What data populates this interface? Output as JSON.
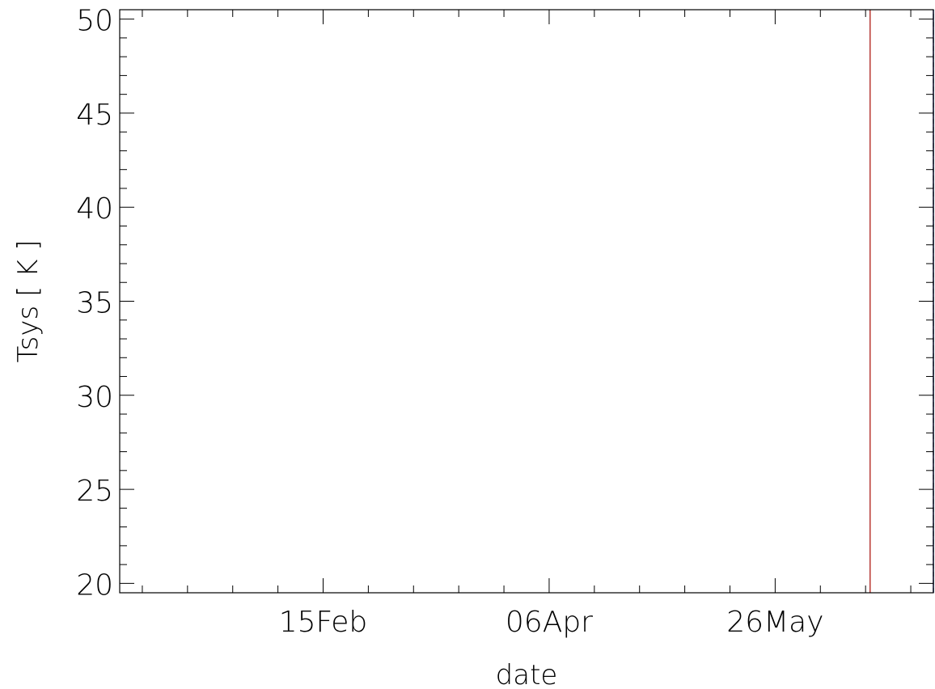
{
  "chart_data": {
    "type": "line",
    "title": "",
    "xlabel": "date",
    "ylabel": "Tsys [ K ]",
    "x_axis": {
      "type": "date",
      "range": [
        "2014-01-01",
        "2014-06-30"
      ],
      "major_ticks": [
        {
          "date": "2014-02-15",
          "label": "15Feb"
        },
        {
          "date": "2014-04-06",
          "label": "06Apr"
        },
        {
          "date": "2014-05-26",
          "label": "26May"
        }
      ]
    },
    "y_axis": {
      "range": [
        19.5,
        50.5
      ],
      "major_ticks": [
        20,
        25,
        30,
        35,
        40,
        45,
        50
      ],
      "labels": [
        "20",
        "25",
        "30",
        "35",
        "40",
        "45",
        "50"
      ]
    },
    "grid": false,
    "series": [
      {
        "color": "#1a1aa0",
        "points": [
          [
            "2014-06-16",
            19.5
          ],
          [
            "2014-06-16",
            50.5
          ]
        ]
      },
      {
        "color": "#c0392b",
        "points": [
          [
            "2014-06-16",
            19.5
          ],
          [
            "2014-06-16",
            50.5
          ]
        ]
      },
      {
        "color": "#1a1aa0",
        "points": [
          [
            "2014-06-30",
            19.5
          ],
          [
            "2014-06-30",
            50.5
          ]
        ]
      },
      {
        "color": "#c0392b",
        "points": [
          [
            "2014-06-30",
            19.5
          ],
          [
            "2014-06-30",
            50.5
          ]
        ]
      },
      {
        "color": "#3aa0e0",
        "points": [
          [
            "2014-06-30",
            19.5
          ],
          [
            "2014-06-30",
            50.5
          ]
        ]
      }
    ]
  }
}
